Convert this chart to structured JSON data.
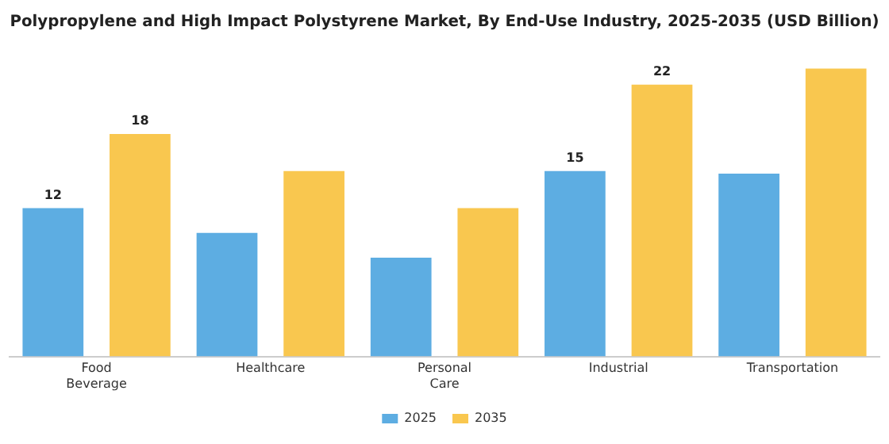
{
  "chart_data": {
    "type": "bar",
    "title": "Polypropylene and High Impact Polystyrene Market, By End-Use Industry, 2025-2035 (USD Billion)",
    "categories": [
      "Food Beverage",
      "Healthcare",
      "Personal Care",
      "Industrial",
      "Transportation"
    ],
    "series": [
      {
        "name": "2025",
        "color": "#5dade2",
        "values": [
          12,
          10,
          8,
          15,
          14.8
        ],
        "value_labels": [
          "12",
          null,
          null,
          "15",
          null
        ]
      },
      {
        "name": "2035",
        "color": "#f9c74f",
        "values": [
          18,
          15,
          12,
          22,
          23.3
        ],
        "value_labels": [
          "18",
          null,
          null,
          "22",
          null
        ]
      }
    ],
    "legend": "bottom",
    "grid": false
  }
}
